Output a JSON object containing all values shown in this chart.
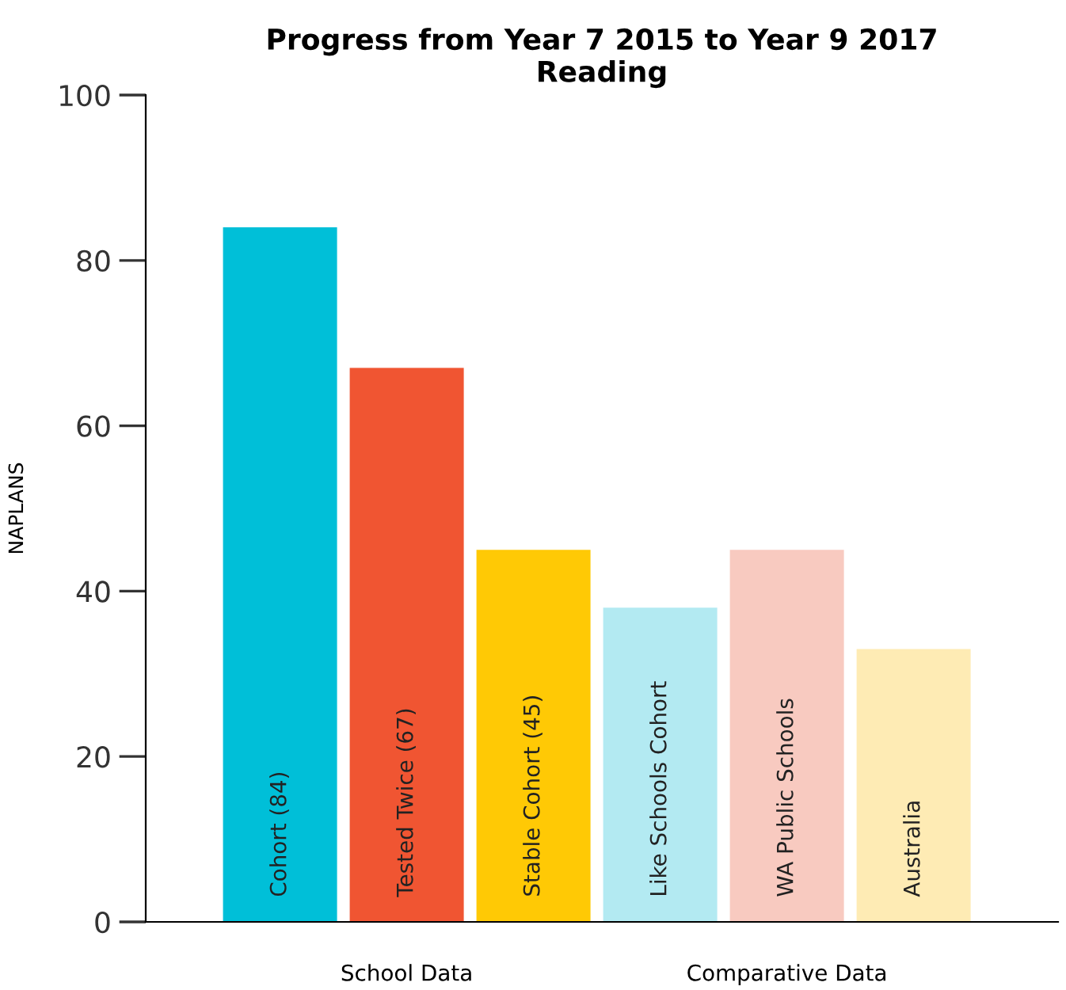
{
  "chart_data": {
    "type": "bar",
    "title": "Progress from Year 7 2015 to Year 9 2017\nReading",
    "ylabel": "NAPLANS",
    "categories": [
      "Cohort (84)",
      "Tested Twice (67)",
      "Stable Cohort (45)",
      "Like Schools Cohort",
      "WA Public Schools",
      "Australia"
    ],
    "values": [
      84,
      67,
      45,
      38,
      45,
      33
    ],
    "colors": [
      "#00bfd8",
      "#f05532",
      "#ffc905",
      "#b3eaf2",
      "#f8cac0",
      "#feebb4"
    ],
    "ylim": [
      0,
      100
    ],
    "yticks": [
      0,
      20,
      40,
      60,
      80,
      100
    ],
    "grid": false,
    "legend": false,
    "annotations": [
      "School Data",
      "Comparative Data"
    ]
  }
}
